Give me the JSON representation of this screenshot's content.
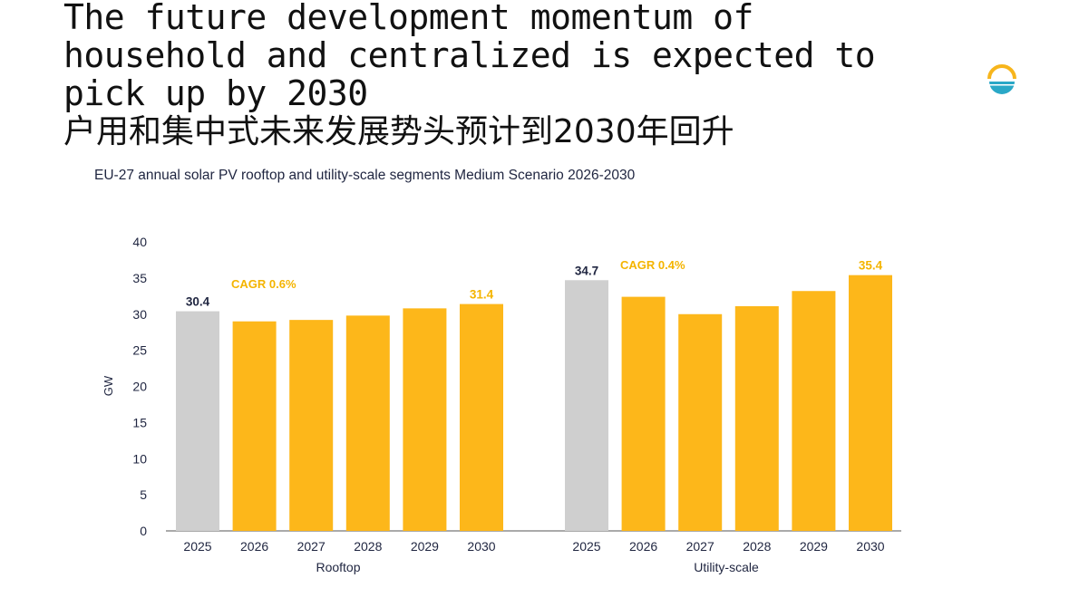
{
  "headline": {
    "english": "The future development momentum of household and centralized is expected to pick up by 2030",
    "chinese": "户用和集中式未来发展势头预计到2030年回升"
  },
  "logo": {
    "icon": "sun-horizon-logo-icon"
  },
  "colors": {
    "bar_actual": "#cfcfcf",
    "bar_forecast": "#fdb71a",
    "cagr_text": "#f4b400",
    "axis_text": "#1f2540"
  },
  "chart_data": {
    "type": "bar",
    "title": "EU-27 annual solar PV rooftop and utility-scale segments Medium Scenario 2026-2030",
    "ylabel": "GW",
    "ylim": [
      0,
      40
    ],
    "yticks": [
      0,
      5,
      10,
      15,
      20,
      25,
      30,
      35,
      40
    ],
    "groups": [
      {
        "name": "Rooftop",
        "categories": [
          "2025",
          "2026",
          "2027",
          "2028",
          "2029",
          "2030"
        ],
        "values": [
          30.4,
          29.0,
          29.2,
          29.8,
          30.8,
          31.4
        ],
        "data_labels": [
          "30.4",
          "",
          "",
          "",
          "",
          "31.4"
        ],
        "cagr": "CAGR 0.6%"
      },
      {
        "name": "Utility-scale",
        "categories": [
          "2025",
          "2026",
          "2027",
          "2028",
          "2029",
          "2030"
        ],
        "values": [
          34.7,
          32.4,
          30.0,
          31.1,
          33.2,
          35.4
        ],
        "data_labels": [
          "34.7",
          "",
          "",
          "",
          "",
          "35.4"
        ],
        "cagr": "CAGR 0.4%"
      }
    ]
  }
}
